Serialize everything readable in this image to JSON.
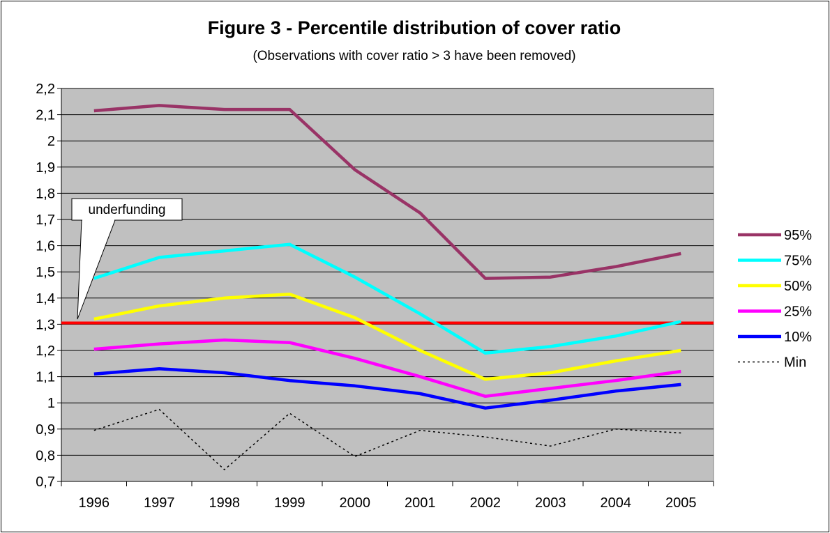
{
  "chart_data": {
    "type": "line",
    "title": "Figure 3 - Percentile distribution of cover ratio",
    "subtitle": "(Observations with cover ratio > 3 have been removed)",
    "xlabel": "",
    "ylabel": "",
    "categories": [
      "1996",
      "1997",
      "1998",
      "1999",
      "2000",
      "2001",
      "2002",
      "2003",
      "2004",
      "2005"
    ],
    "ylim": [
      0.7,
      2.2
    ],
    "yticks": [
      0.7,
      0.8,
      0.9,
      1.0,
      1.1,
      1.2,
      1.3,
      1.4,
      1.5,
      1.6,
      1.7,
      1.8,
      1.9,
      2.0,
      2.1,
      2.2
    ],
    "ytick_labels": [
      "0,7",
      "0,8",
      "0,9",
      "1",
      "1,1",
      "1,2",
      "1,3",
      "1,4",
      "1,5",
      "1,6",
      "1,7",
      "1,8",
      "1,9",
      "2",
      "2,1",
      "2,2"
    ],
    "grid": true,
    "legend_position": "right",
    "series": [
      {
        "name": "95%",
        "color": "#993366",
        "dash": "solid",
        "values": [
          2.115,
          2.135,
          2.12,
          2.12,
          1.89,
          1.725,
          1.475,
          1.48,
          1.52,
          1.57
        ]
      },
      {
        "name": "75%",
        "color": "#00ffff",
        "dash": "solid",
        "values": [
          1.475,
          1.555,
          1.58,
          1.605,
          1.48,
          1.34,
          1.19,
          1.215,
          1.255,
          1.31
        ]
      },
      {
        "name": "50%",
        "color": "#ffff00",
        "dash": "solid",
        "values": [
          1.32,
          1.37,
          1.4,
          1.415,
          1.325,
          1.2,
          1.09,
          1.115,
          1.16,
          1.2
        ]
      },
      {
        "name": "25%",
        "color": "#ff00ff",
        "dash": "solid",
        "values": [
          1.205,
          1.225,
          1.24,
          1.23,
          1.17,
          1.1,
          1.025,
          1.055,
          1.085,
          1.12
        ]
      },
      {
        "name": "10%",
        "color": "#0000ff",
        "dash": "solid",
        "values": [
          1.11,
          1.13,
          1.115,
          1.085,
          1.065,
          1.035,
          0.98,
          1.01,
          1.045,
          1.07
        ]
      },
      {
        "name": "Min",
        "color": "#000000",
        "dash": "dotted",
        "values": [
          0.895,
          0.975,
          0.745,
          0.96,
          0.795,
          0.895,
          0.87,
          0.835,
          0.9,
          0.885
        ]
      }
    ],
    "reference_line": {
      "value": 1.305,
      "color": "#ff0000"
    },
    "annotation": {
      "text": "underfunding",
      "points_to_value": 1.33
    }
  }
}
